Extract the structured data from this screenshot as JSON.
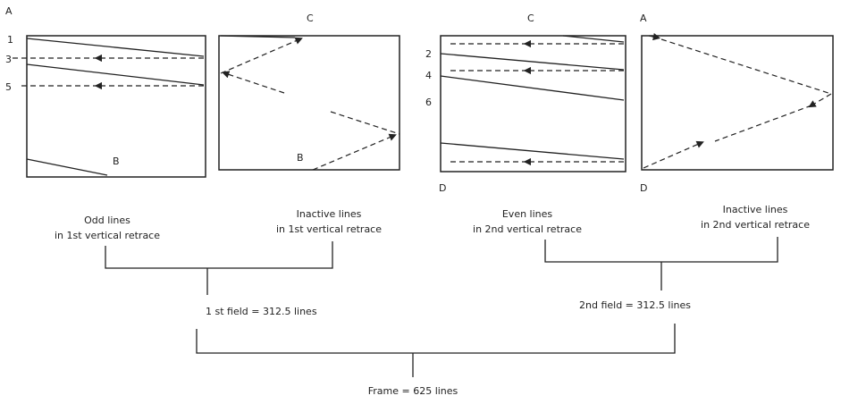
{
  "panels": [
    {
      "corner_top": "A",
      "corner_bottom": "B",
      "line_numbers": [
        "1",
        "3",
        "5"
      ]
    },
    {
      "corner_top": "C",
      "corner_bottom": "B"
    },
    {
      "corner_top": "C",
      "corner_bottom": "D",
      "line_numbers": [
        "2",
        "4",
        "6"
      ]
    },
    {
      "corner_top": "A",
      "corner_bottom": "D"
    }
  ],
  "captions": [
    [
      "Odd lines",
      "in 1st vertical retrace"
    ],
    [
      "Inactive lines",
      "in 1st vertical retrace"
    ],
    [
      "Even lines",
      "in 2nd vertical retrace"
    ],
    [
      "Inactive lines",
      "in 2nd vertical retrace"
    ]
  ],
  "fields": [
    "1 st field = 312.5 lines",
    "2nd field = 312.5 lines"
  ],
  "frame": "Frame = 625 lines"
}
